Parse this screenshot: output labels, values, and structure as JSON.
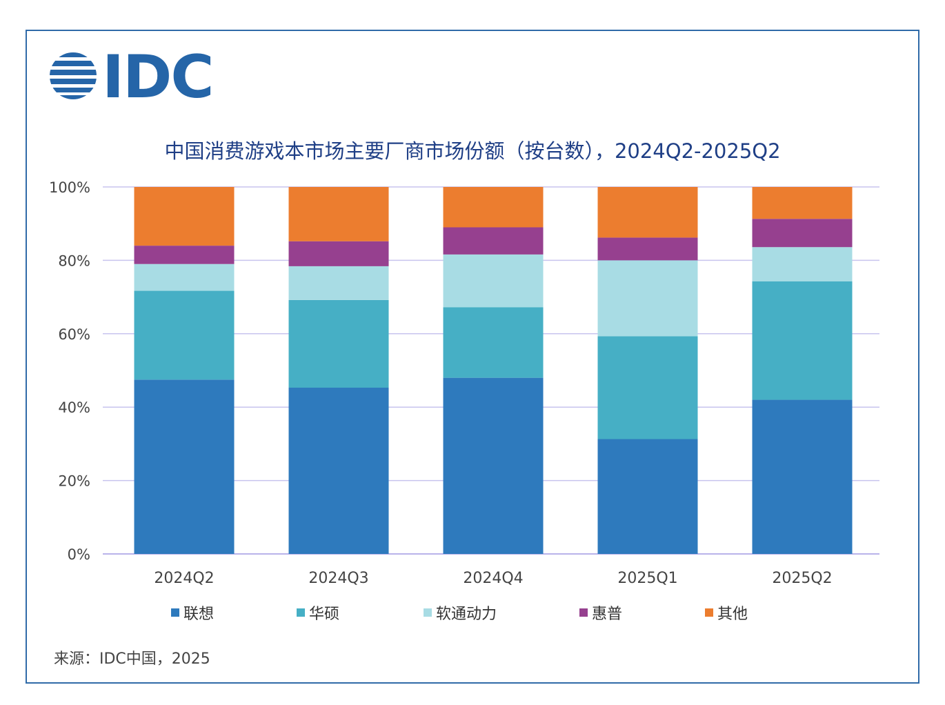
{
  "logo_text": "IDC",
  "source": "来源：IDC中国，2025",
  "colors": {
    "border": "#2f6aa8",
    "title": "#1f3f86",
    "grid": "#c7c3ee",
    "axis": "#b9b3ea"
  },
  "chart_data": {
    "type": "bar",
    "stacked": true,
    "title": "中国消费游戏本市场主要厂商市场份额（按台数），2024Q2-2025Q2",
    "categories": [
      "2024Q2",
      "2024Q3",
      "2024Q4",
      "2025Q1",
      "2025Q2"
    ],
    "yticks": [
      "0%",
      "20%",
      "40%",
      "60%",
      "80%",
      "100%"
    ],
    "ylim": [
      0,
      100
    ],
    "grid": true,
    "legend_position": "bottom",
    "series": [
      {
        "name": "联想",
        "color": "#2e7abd",
        "values": [
          47.5,
          45.3,
          48.0,
          31.3,
          42.0
        ]
      },
      {
        "name": "华硕",
        "color": "#46afc5",
        "values": [
          24.2,
          23.9,
          19.2,
          28.0,
          32.3
        ]
      },
      {
        "name": "软通动力",
        "color": "#a8dce4",
        "values": [
          7.3,
          9.2,
          14.4,
          20.7,
          9.3
        ]
      },
      {
        "name": "惠普",
        "color": "#96408f",
        "values": [
          5.0,
          6.8,
          7.4,
          6.2,
          7.7
        ]
      },
      {
        "name": "其他",
        "color": "#ec7d2f",
        "values": [
          16.0,
          14.8,
          11.0,
          13.8,
          8.7
        ]
      }
    ]
  }
}
